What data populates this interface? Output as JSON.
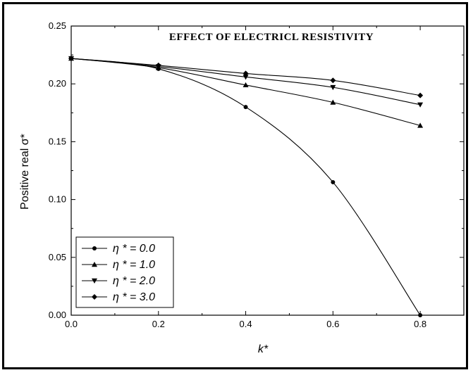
{
  "chart_data": {
    "type": "line",
    "title": "EFFECT OF ELECTRICL RESISTIVITY",
    "xlabel": "k*",
    "ylabel": "Positive real σ*",
    "xlim": [
      0.0,
      0.9
    ],
    "ylim": [
      0.0,
      0.25
    ],
    "xticks": [
      "0.0",
      "0.2",
      "0.4",
      "0.6",
      "0.8"
    ],
    "yticks": [
      "0.00",
      "0.05",
      "0.10",
      "0.15",
      "0.20",
      "0.25"
    ],
    "grid": false,
    "legend_position": "bottom-left",
    "x": [
      0.0,
      0.2,
      0.4,
      0.6,
      0.8
    ],
    "series": [
      {
        "name": "η * = 0.0",
        "marker": "circle",
        "values": [
          0.222,
          0.213,
          0.18,
          0.115,
          0.0
        ]
      },
      {
        "name": "η * = 1.0",
        "marker": "triangle-up",
        "values": [
          0.222,
          0.214,
          0.199,
          0.184,
          0.164
        ]
      },
      {
        "name": "η * = 2.0",
        "marker": "triangle-down",
        "values": [
          0.222,
          0.215,
          0.206,
          0.197,
          0.182
        ]
      },
      {
        "name": "η * = 3.0",
        "marker": "diamond",
        "values": [
          0.222,
          0.216,
          0.209,
          0.203,
          0.19
        ]
      }
    ]
  }
}
